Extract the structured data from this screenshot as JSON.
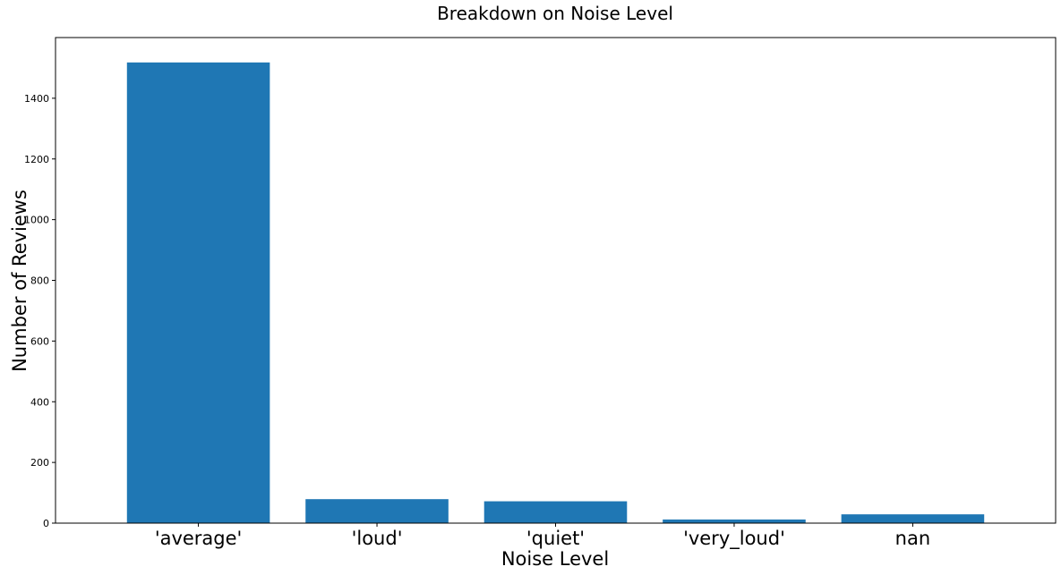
{
  "chart_data": {
    "type": "bar",
    "title": "Breakdown on Noise Level",
    "xlabel": "Noise Level",
    "ylabel": "Number of Reviews",
    "categories": [
      "'average'",
      "'loud'",
      "'quiet'",
      "'very_loud'",
      "nan"
    ],
    "values": [
      1518,
      79,
      72,
      12,
      29
    ],
    "ylim": [
      0,
      1600
    ],
    "yticks": [
      0,
      200,
      400,
      600,
      800,
      1000,
      1200,
      1400
    ],
    "bar_color": "#1f77b4",
    "grid": false,
    "legend": "none"
  }
}
